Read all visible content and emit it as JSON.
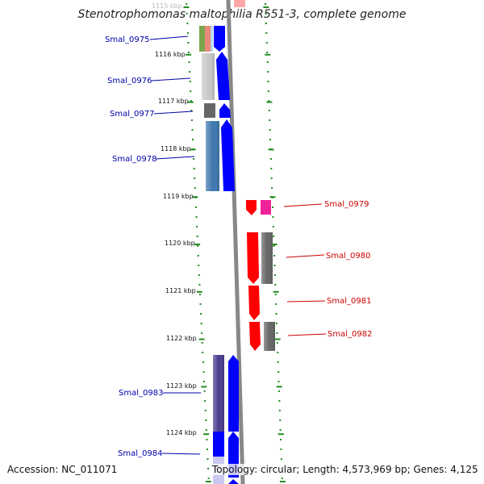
{
  "title": "Stenotrophomonas maltophilia R551-3, complete genome",
  "accession": "Accession: NC_011071",
  "topology": "Topology: circular; Length: 4,573,969 bp; Genes: 4,125",
  "scale_labels": [
    "1115 kbp",
    "1116 kbp",
    "1117 kbp",
    "1118 kbp",
    "1119 kbp",
    "1120 kbp",
    "1121 kbp",
    "1122 kbp",
    "1123 kbp",
    "1124 kbp"
  ],
  "left_genes": [
    "Smal_0975",
    "Smal_0976",
    "Smal_0977",
    "Smal_0978",
    "Smal_0983",
    "Smal_0984"
  ],
  "right_genes": [
    "Smal_0979",
    "Smal_0980",
    "Smal_0981",
    "Smal_0982"
  ],
  "colors": {
    "forward_strand": "#0000ff",
    "reverse_strand": "#ff0000",
    "forward_label": "#0000aa",
    "reverse_label": "#cc0000",
    "backbone": "#888888",
    "scale_ticks": "#228b22"
  }
}
